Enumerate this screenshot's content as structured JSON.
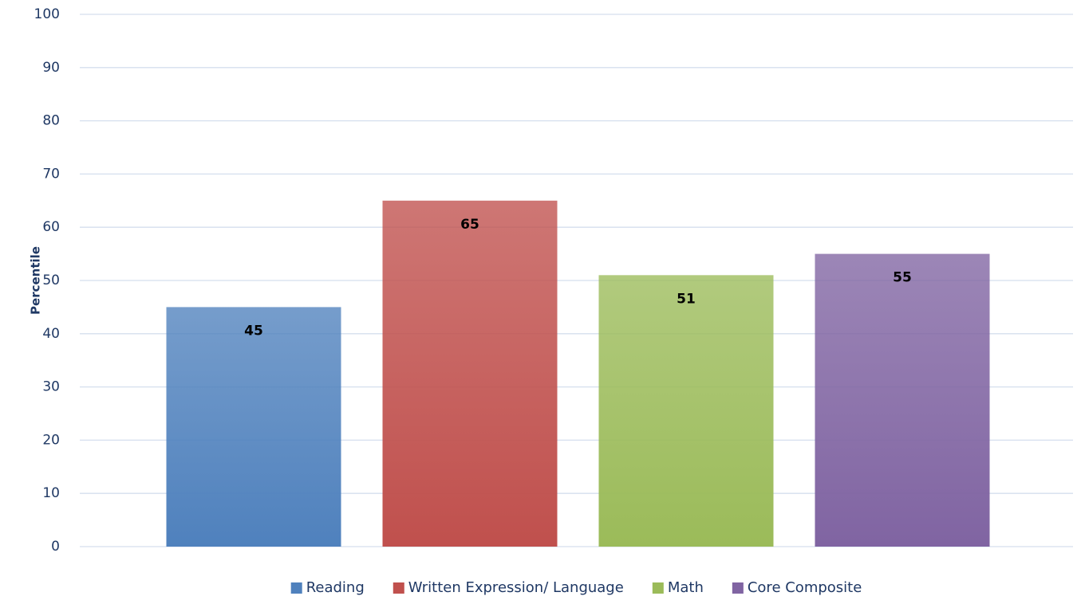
{
  "chart_data": {
    "type": "bar",
    "y_label": "Percentile",
    "categories": [
      null
    ],
    "series": [
      {
        "name": "Reading",
        "color": "#4f81bd",
        "values": [
          45
        ]
      },
      {
        "name": "Written Expression/ Language",
        "color": "#c0504d",
        "values": [
          65
        ]
      },
      {
        "name": "Math",
        "color": "#9bbb59",
        "values": [
          51
        ]
      },
      {
        "name": "Core Composite",
        "color": "#8064a2",
        "values": [
          55
        ]
      }
    ],
    "ylim": [
      0,
      100
    ],
    "yticks": [
      0,
      10,
      20,
      30,
      40,
      50,
      60,
      70,
      80,
      90,
      100
    ],
    "grid": true,
    "legend": "bottom",
    "data_labels": true
  }
}
